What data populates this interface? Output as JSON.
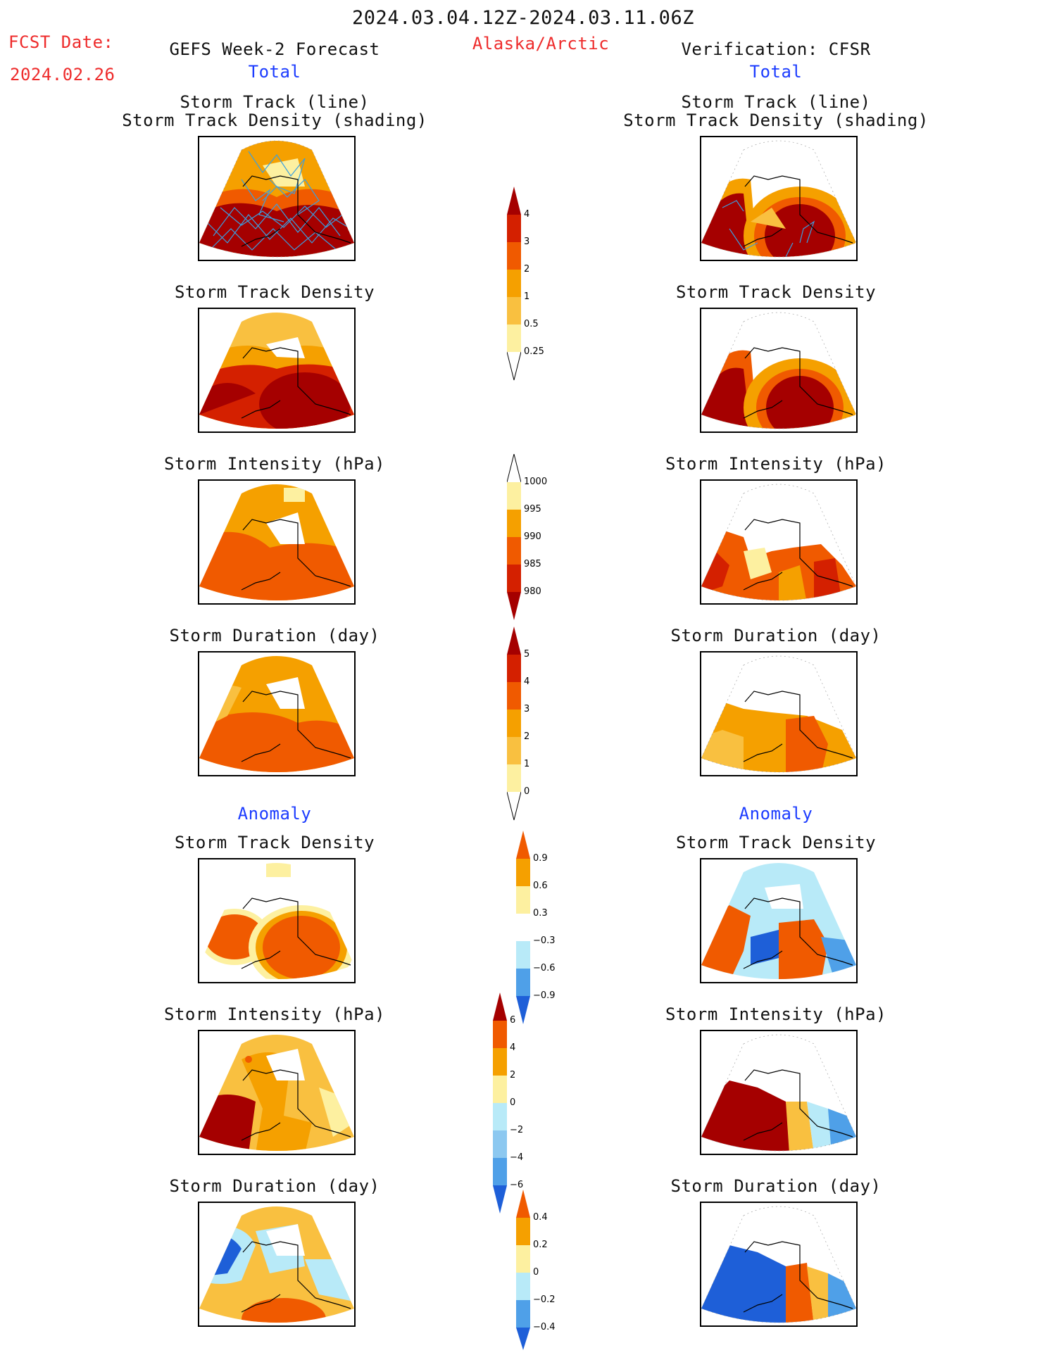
{
  "header": {
    "date_range": "2024.03.04.12Z-2024.03.11.06Z",
    "fcst_label": "FCST Date:",
    "fcst_date": "2024.02.26",
    "left_title": "GEFS Week-2 Forecast",
    "region": "Alaska/Arctic",
    "right_title": "Verification: CFSR"
  },
  "sections": {
    "total": "Total",
    "anomaly": "Anomaly"
  },
  "panel_titles": {
    "track_line": "Storm Track (line)",
    "track_shading": "Storm Track Density (shading)",
    "density": "Storm Track Density",
    "intensity": "Storm Intensity (hPa)",
    "duration": "Storm Duration (day)"
  },
  "colorbars": {
    "density_total": [
      "4",
      "3",
      "2",
      "1",
      "0.5",
      "0.25"
    ],
    "intensity_total": [
      "1000",
      "995",
      "990",
      "985",
      "980"
    ],
    "duration_total": [
      "5",
      "4",
      "3",
      "2",
      "1",
      "0"
    ],
    "density_anom": [
      "0.9",
      "0.6",
      "0.3",
      "−0.3",
      "−0.6",
      "−0.9"
    ],
    "intensity_anom": [
      "6",
      "4",
      "2",
      "0",
      "−2",
      "−4",
      "−6"
    ],
    "duration_anom": [
      "0.4",
      "0.2",
      "0",
      "−0.2",
      "−0.4"
    ]
  },
  "colors": {
    "title_red": "#ee2b2b",
    "title_blue": "#1c3cff",
    "dark_red": "#a50000",
    "red": "#d42000",
    "orange_red": "#f05a00",
    "orange": "#f5a000",
    "light_orange": "#f9c040",
    "pale_yellow": "#fdf0a0",
    "light_blue": "#b8eaf8",
    "mid_blue": "#4fa0e8",
    "dark_blue": "#1e5fd8",
    "track_line": "#3a9fe0"
  }
}
